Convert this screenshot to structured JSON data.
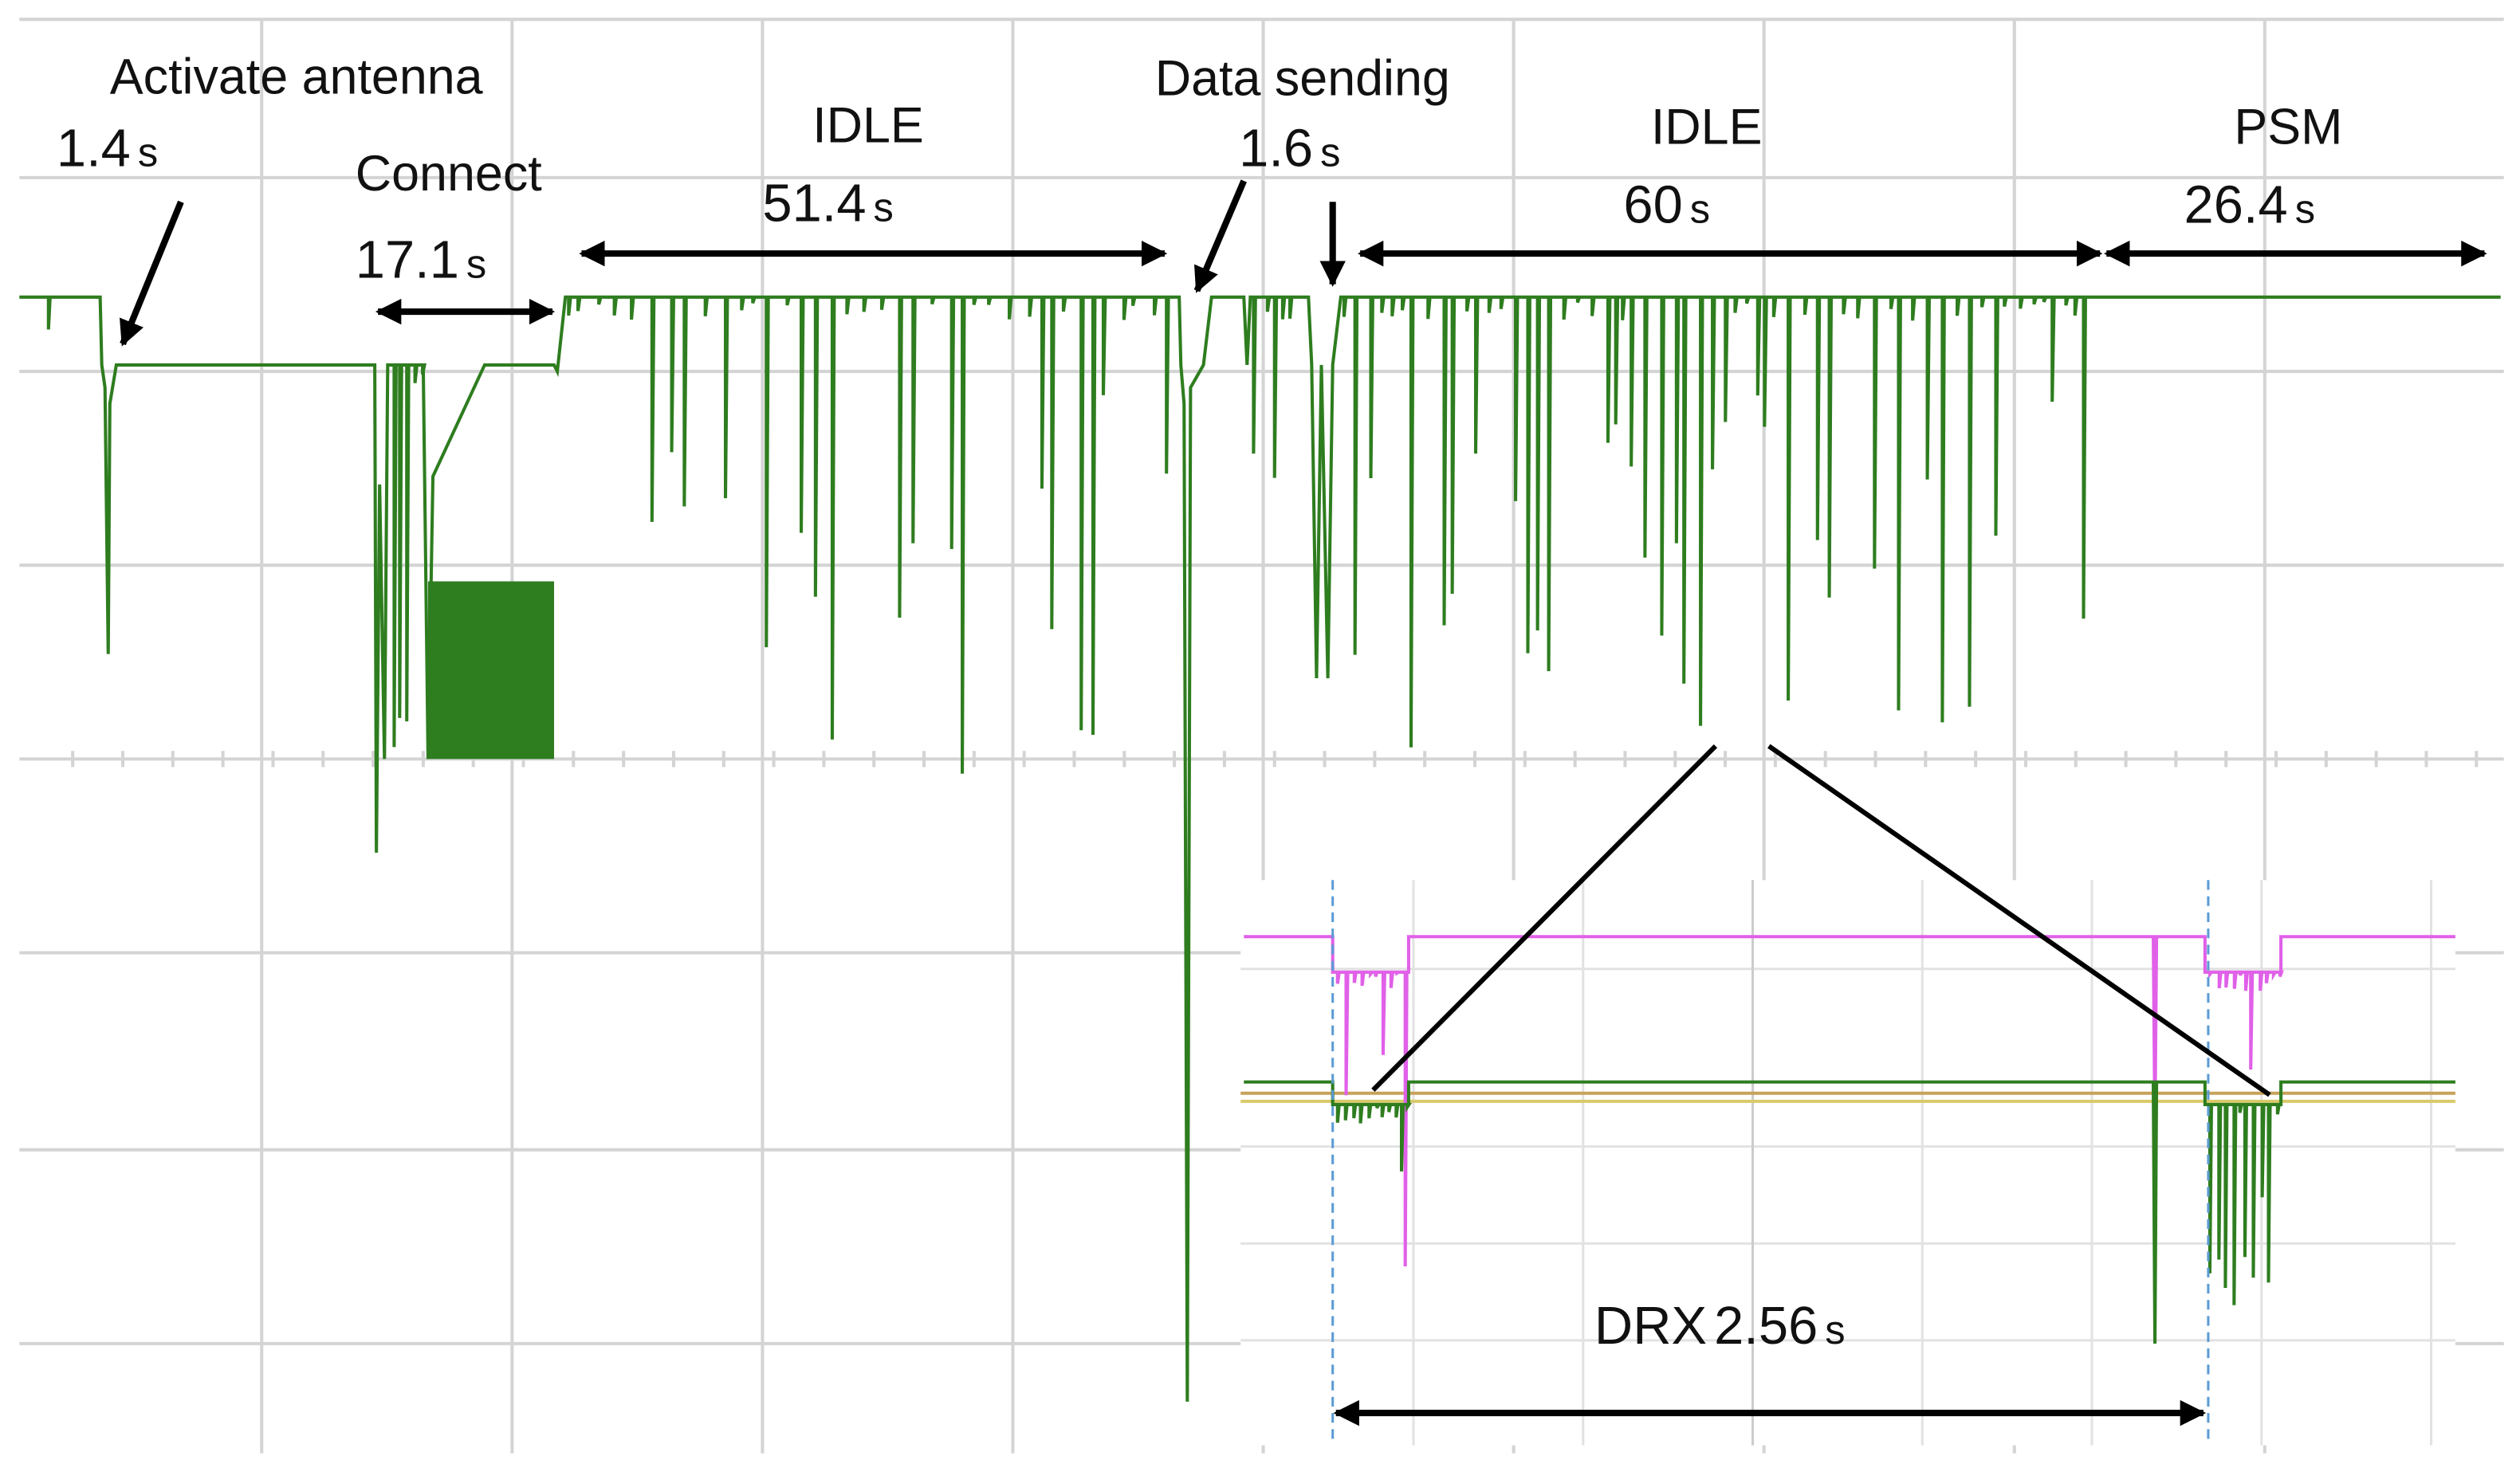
{
  "annotations": [
    {
      "title": "Activate antenna",
      "value": "1.4",
      "unit": "s"
    },
    {
      "title": "Connect",
      "value": "17.1",
      "unit": "s"
    },
    {
      "title": "IDLE",
      "value": "51.4",
      "unit": "s"
    },
    {
      "title": "Data sending",
      "value": "1.6",
      "unit": "s"
    },
    {
      "title": "IDLE",
      "value": "60",
      "unit": "s"
    },
    {
      "title": "PSM",
      "value": "26.4",
      "unit": "s"
    }
  ],
  "inset": {
    "title": "DRX",
    "value": "2.56",
    "unit": "s"
  }
}
